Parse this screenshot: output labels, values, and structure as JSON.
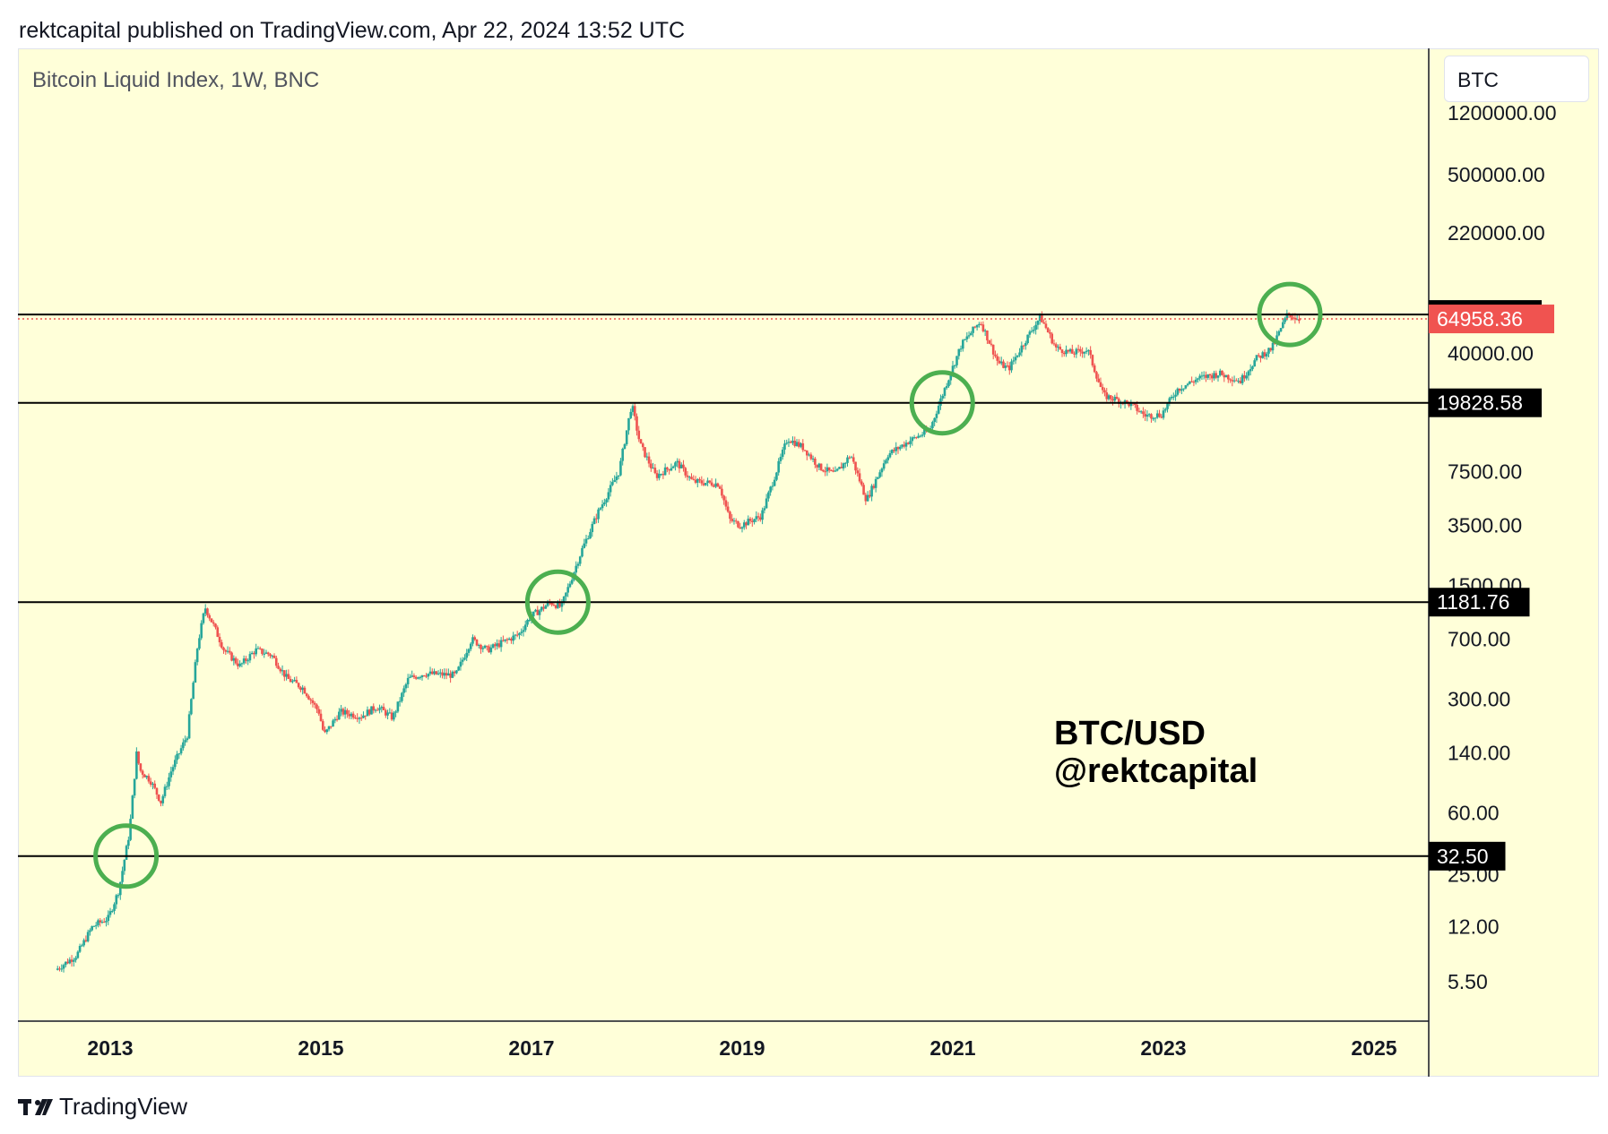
{
  "header": {
    "publish_text": "rektcapital published on TradingView.com, Apr 22, 2024 13:52 UTC"
  },
  "symbol": {
    "title": "Bitcoin Liquid Index, 1W, BNC",
    "ticker_box": "BTC"
  },
  "annotation": {
    "line1": "BTC/USD",
    "line2": "@rektcapital"
  },
  "footer": {
    "brand": "TradingView",
    "logo_icon": "tradingview-logo-icon"
  },
  "colors": {
    "background": "#ffffd9",
    "up": "#26a69a",
    "down": "#ef5350",
    "circle": "#4caf50",
    "level_line": "#000000",
    "current_price": "#f05350"
  },
  "chart_data": {
    "type": "candlestick",
    "title": "Bitcoin Liquid Index, 1W, BNC",
    "scale": "log",
    "ylim": [
      3,
      1200000
    ],
    "xlim": [
      2012.5,
      2025.9
    ],
    "x_ticks": [
      "2013",
      "2015",
      "2017",
      "2019",
      "2021",
      "2023",
      "2025"
    ],
    "y_ticks": [
      "1200000.00",
      "500000.00",
      "220000.00",
      "40000.00",
      "7500.00",
      "3500.00",
      "1500.00",
      "700.00",
      "300.00",
      "140.00",
      "60.00",
      "25.00",
      "12.00",
      "5.50"
    ],
    "horizontal_levels": [
      {
        "label": "69164.86",
        "value": 69164.86
      },
      {
        "label": "19828.58",
        "value": 19828.58
      },
      {
        "label": "1181.76",
        "value": 1181.76
      },
      {
        "label": "32.50",
        "value": 32.5
      }
    ],
    "current_price": {
      "label": "64958.36",
      "value": 64958.36
    },
    "circled_breakouts": [
      {
        "date": 2013.15,
        "price": 32.5
      },
      {
        "date": 2017.25,
        "price": 1181.76
      },
      {
        "date": 2020.9,
        "price": 19828.58
      },
      {
        "date": 2024.2,
        "price": 69164.86
      }
    ],
    "price_path": [
      [
        2012.5,
        6.5
      ],
      [
        2012.7,
        8
      ],
      [
        2012.85,
        12
      ],
      [
        2012.9,
        12.5
      ],
      [
        2013.0,
        13.5
      ],
      [
        2013.1,
        20
      ],
      [
        2013.2,
        45
      ],
      [
        2013.27,
        140
      ],
      [
        2013.3,
        110
      ],
      [
        2013.4,
        95
      ],
      [
        2013.5,
        70
      ],
      [
        2013.6,
        110
      ],
      [
        2013.75,
        180
      ],
      [
        2013.85,
        650
      ],
      [
        2013.92,
        1100
      ],
      [
        2014.0,
        850
      ],
      [
        2014.1,
        600
      ],
      [
        2014.25,
        480
      ],
      [
        2014.4,
        600
      ],
      [
        2014.55,
        560
      ],
      [
        2014.7,
        400
      ],
      [
        2014.85,
        350
      ],
      [
        2015.0,
        250
      ],
      [
        2015.05,
        180
      ],
      [
        2015.2,
        250
      ],
      [
        2015.4,
        235
      ],
      [
        2015.55,
        270
      ],
      [
        2015.7,
        230
      ],
      [
        2015.85,
        400
      ],
      [
        2016.0,
        430
      ],
      [
        2016.3,
        420
      ],
      [
        2016.45,
        700
      ],
      [
        2016.6,
        600
      ],
      [
        2016.9,
        750
      ],
      [
        2017.0,
        950
      ],
      [
        2017.2,
        1180
      ],
      [
        2017.3,
        1100
      ],
      [
        2017.5,
        2500
      ],
      [
        2017.65,
        4200
      ],
      [
        2017.85,
        7500
      ],
      [
        2017.97,
        19500
      ],
      [
        2018.05,
        11000
      ],
      [
        2018.2,
        7000
      ],
      [
        2018.4,
        8500
      ],
      [
        2018.55,
        6500
      ],
      [
        2018.8,
        6300
      ],
      [
        2018.9,
        3800
      ],
      [
        2019.0,
        3500
      ],
      [
        2019.2,
        4000
      ],
      [
        2019.45,
        12000
      ],
      [
        2019.6,
        10500
      ],
      [
        2019.75,
        8000
      ],
      [
        2019.9,
        7200
      ],
      [
        2020.05,
        9500
      ],
      [
        2020.2,
        5000
      ],
      [
        2020.4,
        9500
      ],
      [
        2020.6,
        11500
      ],
      [
        2020.8,
        13500
      ],
      [
        2020.95,
        25000
      ],
      [
        2021.1,
        45000
      ],
      [
        2021.28,
        63000
      ],
      [
        2021.45,
        35000
      ],
      [
        2021.55,
        32000
      ],
      [
        2021.7,
        47000
      ],
      [
        2021.85,
        67000
      ],
      [
        2022.0,
        43000
      ],
      [
        2022.15,
        40000
      ],
      [
        2022.3,
        42000
      ],
      [
        2022.45,
        22000
      ],
      [
        2022.7,
        19500
      ],
      [
        2022.85,
        16500
      ],
      [
        2023.0,
        16800
      ],
      [
        2023.15,
        24000
      ],
      [
        2023.35,
        28000
      ],
      [
        2023.55,
        30000
      ],
      [
        2023.75,
        27000
      ],
      [
        2023.9,
        37000
      ],
      [
        2024.05,
        43000
      ],
      [
        2024.2,
        70000
      ],
      [
        2024.3,
        64958
      ]
    ]
  }
}
